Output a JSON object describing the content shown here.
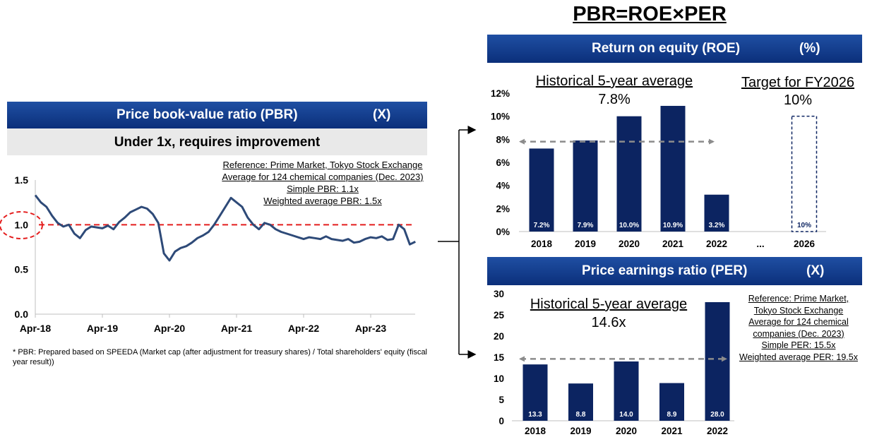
{
  "main_title": "PBR=ROE×PER",
  "pbr": {
    "header_title": "Price book-value ratio (PBR)",
    "header_unit": "(X)",
    "subtitle": "Under 1x, requires improvement",
    "reference": [
      "Reference: Prime Market, Tokyo Stock Exchange",
      "Average for 124 chemical companies (Dec. 2023)",
      "Simple PBR: 1.1x",
      "Weighted average PBR: 1.5x"
    ],
    "footnote": "* PBR: Prepared based on SPEEDA (Market cap (after adjustment for treasury shares) / Total shareholders' equity (fiscal year result))"
  },
  "roe": {
    "header_title": "Return on equity (ROE)",
    "header_unit": "(%)",
    "hist_label": "Historical 5-year average",
    "hist_value": "7.8%",
    "target_label": "Target for FY2026",
    "target_value": "10%"
  },
  "per": {
    "header_title": "Price earnings ratio (PER)",
    "header_unit": "(X)",
    "hist_label": "Historical 5-year average",
    "hist_value": "14.6x",
    "reference": [
      "Reference: Prime Market,",
      "Tokyo Stock Exchange",
      "Average for 124 chemical",
      "companies (Dec. 2023)",
      "Simple PER: 15.5x",
      "Weighted average PER: 19.5x"
    ]
  },
  "colors": {
    "bar": "#0c2461",
    "header": "#0b2f7a",
    "line": "#2e4a78",
    "dashed_red": "#e41e1e",
    "dashed_gray": "#8c8c8c"
  },
  "chart_data": [
    {
      "type": "line",
      "title": "Price book-value ratio (PBR)",
      "xticks": [
        "Apr-18",
        "Apr-19",
        "Apr-20",
        "Apr-21",
        "Apr-22",
        "Apr-23"
      ],
      "yticks": [
        "0.0",
        "0.5",
        "1.0",
        "1.5"
      ],
      "ylim": [
        0,
        1.5
      ],
      "reference_line": 1.0,
      "series": [
        {
          "x": [
            "2018-04",
            "2018-05",
            "2018-06",
            "2018-07",
            "2018-08",
            "2018-09",
            "2018-10",
            "2018-11",
            "2018-12",
            "2019-01",
            "2019-02",
            "2019-03",
            "2019-04",
            "2019-05",
            "2019-06",
            "2019-07",
            "2019-08",
            "2019-09",
            "2019-10",
            "2019-11",
            "2019-12",
            "2020-01",
            "2020-02",
            "2020-03",
            "2020-04",
            "2020-05",
            "2020-06",
            "2020-07",
            "2020-08",
            "2020-09",
            "2020-10",
            "2020-11",
            "2020-12",
            "2021-01",
            "2021-02",
            "2021-03",
            "2021-04",
            "2021-05",
            "2021-06",
            "2021-07",
            "2021-08",
            "2021-09",
            "2021-10",
            "2021-11",
            "2021-12",
            "2022-01",
            "2022-02",
            "2022-03",
            "2022-04",
            "2022-05",
            "2022-06",
            "2022-07",
            "2022-08",
            "2022-09",
            "2022-10",
            "2022-11",
            "2022-12",
            "2023-01",
            "2023-02",
            "2023-03",
            "2023-04",
            "2023-05",
            "2023-06",
            "2023-07",
            "2023-08",
            "2023-09",
            "2023-10",
            "2023-11",
            "2023-12"
          ],
          "values": [
            1.33,
            1.25,
            1.2,
            1.1,
            1.02,
            0.98,
            1.0,
            0.9,
            0.85,
            0.94,
            0.98,
            0.97,
            0.96,
            0.99,
            0.95,
            1.03,
            1.08,
            1.14,
            1.17,
            1.2,
            1.18,
            1.12,
            1.02,
            0.68,
            0.6,
            0.7,
            0.74,
            0.76,
            0.8,
            0.85,
            0.88,
            0.92,
            1.0,
            1.1,
            1.2,
            1.3,
            1.25,
            1.2,
            1.08,
            1.0,
            0.95,
            1.02,
            1.0,
            0.95,
            0.92,
            0.9,
            0.88,
            0.86,
            0.84,
            0.86,
            0.85,
            0.84,
            0.87,
            0.84,
            0.83,
            0.82,
            0.84,
            0.8,
            0.81,
            0.84,
            0.86,
            0.85,
            0.87,
            0.83,
            0.84,
            1.0,
            0.95,
            0.78,
            0.81
          ]
        }
      ]
    },
    {
      "type": "bar",
      "title": "Return on equity (ROE)",
      "categories": [
        "2018",
        "2019",
        "2020",
        "2021",
        "2022",
        "...",
        "2026"
      ],
      "values": [
        7.2,
        7.9,
        10.0,
        10.9,
        3.2,
        null,
        10
      ],
      "labels": [
        "7.2%",
        "7.9%",
        "10.0%",
        "10.9%",
        "3.2%",
        "",
        "10%"
      ],
      "target_category": "2026",
      "yticks": [
        "0%",
        "2%",
        "4%",
        "6%",
        "8%",
        "10%",
        "12%"
      ],
      "ylim": [
        0,
        12
      ],
      "average_line": 7.8
    },
    {
      "type": "bar",
      "title": "Price earnings ratio (PER)",
      "categories": [
        "2018",
        "2019",
        "2020",
        "2021",
        "2022"
      ],
      "values": [
        13.3,
        8.8,
        14.0,
        8.9,
        28.0
      ],
      "labels": [
        "13.3",
        "8.8",
        "14.0",
        "8.9",
        "28.0"
      ],
      "yticks": [
        "0",
        "5",
        "10",
        "15",
        "20",
        "25",
        "30"
      ],
      "ylim": [
        0,
        30
      ],
      "average_line": 14.6
    }
  ]
}
